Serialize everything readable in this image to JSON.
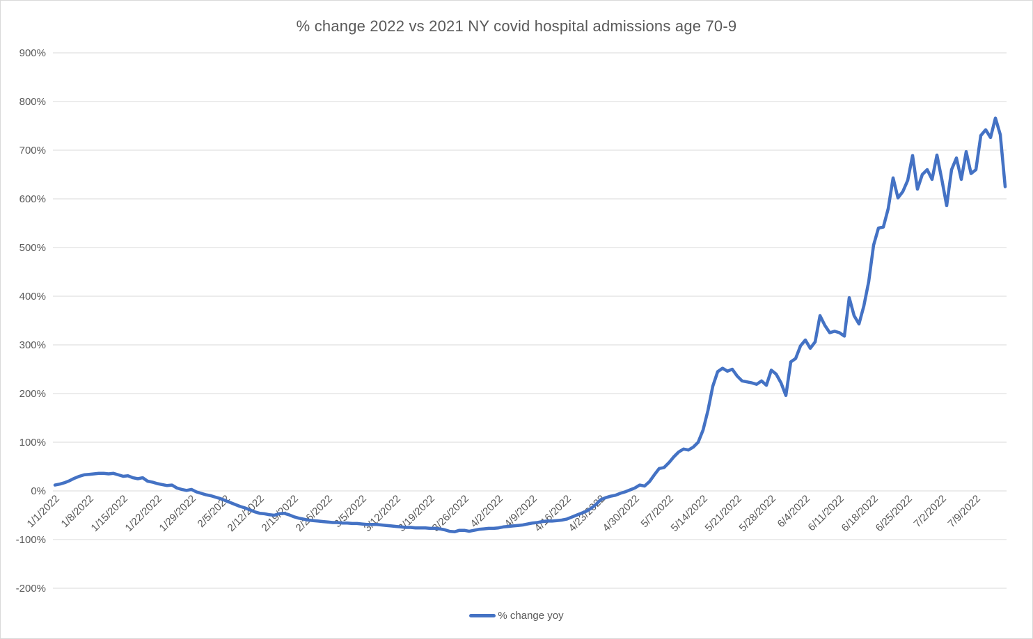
{
  "chart": {
    "title": "% change 2022 vs 2021 NY covid hospital admissions age 70-9",
    "legend_label": "% change yoy"
  },
  "colors": {
    "line": "#4472C4",
    "gridline": "#D9D9D9",
    "text": "#595959",
    "border": "#D9D9D9",
    "background": "#FFFFFF"
  },
  "chart_data": {
    "type": "line",
    "title": "% change 2022 vs 2021 NY covid hospital admissions age 70-9",
    "xlabel": "",
    "ylabel": "",
    "y_unit": "%",
    "ylim": [
      -200,
      900
    ],
    "y_ticks": [
      900,
      800,
      700,
      600,
      500,
      400,
      300,
      200,
      100,
      0,
      -100,
      -200
    ],
    "y_tick_labels": [
      "900%",
      "800%",
      "700%",
      "600%",
      "500%",
      "400%",
      "300%",
      "200%",
      "100%",
      "0%",
      "-100%",
      "-200%"
    ],
    "x_tick_labels": [
      "1/1/2022",
      "1/8/2022",
      "1/15/2022",
      "1/22/2022",
      "1/29/2022",
      "2/5/2022",
      "2/12/2022",
      "2/19/2022",
      "2/26/2022",
      "3/5/2022",
      "3/12/2022",
      "3/19/2022",
      "3/26/2022",
      "4/2/2022",
      "4/9/2022",
      "4/16/2022",
      "4/23/2022",
      "4/30/2022",
      "5/7/2022",
      "5/14/2022",
      "5/21/2022",
      "5/28/2022",
      "6/4/2022",
      "6/11/2022",
      "6/18/2022",
      "6/25/2022",
      "7/2/2022",
      "7/9/2022"
    ],
    "x_start_date": "1/1/2022",
    "x_frequency": "daily",
    "grid": "horizontal",
    "legend_position": "bottom",
    "series": [
      {
        "name": "% change yoy",
        "color": "#4472C4",
        "values": [
          12,
          14,
          17,
          21,
          26,
          30,
          33,
          34,
          35,
          36,
          36,
          35,
          36,
          33,
          30,
          31,
          27,
          25,
          27,
          20,
          18,
          15,
          13,
          11,
          12,
          6,
          3,
          1,
          3,
          -2,
          -5,
          -8,
          -10,
          -13,
          -16,
          -20,
          -24,
          -28,
          -32,
          -35,
          -39,
          -43,
          -46,
          -47,
          -49,
          -50,
          -47,
          -46,
          -49,
          -53,
          -56,
          -58,
          -60,
          -61,
          -62,
          -63,
          -64,
          -65,
          -65,
          -66,
          -66,
          -67,
          -67,
          -68,
          -69,
          -69,
          -69,
          -70,
          -71,
          -72,
          -73,
          -74,
          -75,
          -75,
          -76,
          -76,
          -76,
          -77,
          -77,
          -78,
          -80,
          -83,
          -84,
          -81,
          -81,
          -83,
          -81,
          -79,
          -78,
          -77,
          -77,
          -76,
          -74,
          -73,
          -72,
          -71,
          -70,
          -68,
          -66,
          -65,
          -63,
          -62,
          -62,
          -61,
          -60,
          -58,
          -54,
          -50,
          -46,
          -42,
          -36,
          -28,
          -18,
          -14,
          -11,
          -9,
          -5,
          -2,
          2,
          6,
          12,
          10,
          19,
          33,
          46,
          48,
          58,
          70,
          80,
          86,
          84,
          90,
          100,
          125,
          165,
          215,
          245,
          252,
          246,
          250,
          236,
          226,
          224,
          222,
          219,
          226,
          217,
          248,
          240,
          222,
          196,
          265,
          272,
          298,
          310,
          293,
          306,
          360,
          340,
          325,
          328,
          325,
          318,
          397,
          360,
          343,
          380,
          430,
          505,
          540,
          542,
          580,
          643,
          602,
          615,
          638,
          689,
          620,
          650,
          660,
          640,
          690,
          640,
          586,
          660,
          684,
          640,
          697,
          652,
          660,
          730,
          742,
          726,
          766,
          732,
          625
        ]
      }
    ]
  }
}
